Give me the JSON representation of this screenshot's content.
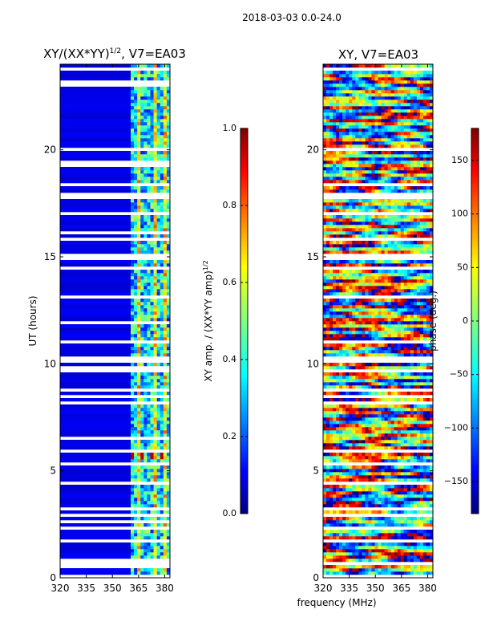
{
  "suptitle": "2018-03-03 0.0-24.0",
  "chart_data": [
    {
      "type": "heatmap",
      "title": "XY/(XX*YY)^1/2, V7=EA03",
      "title_text": "XY/(XX*YY)",
      "title_sup": "1/2",
      "title_rest": ", V7=EA03",
      "xlabel": "",
      "ylabel": "UT (hours)",
      "xlim": [
        320,
        383
      ],
      "ylim": [
        0,
        24
      ],
      "xticks": [
        "320",
        "335",
        "350",
        "365",
        "380"
      ],
      "xtick_values": [
        320,
        335,
        350,
        365,
        380
      ],
      "yticks": [
        "0",
        "5",
        "10",
        "15",
        "20"
      ],
      "ytick_values": [
        0,
        5,
        10,
        15,
        20
      ],
      "colorbar": {
        "label": "XY amp. / (XX*YY amp)^1/2",
        "label_text": "XY amp. / (XX*YY amp)",
        "label_sup": "1/2",
        "range": [
          0,
          1
        ],
        "ticks": [
          "0.0",
          "0.2",
          "0.4",
          "0.6",
          "0.8",
          "1.0"
        ],
        "tick_values": [
          0,
          0.2,
          0.4,
          0.6,
          0.8,
          1.0
        ]
      }
    },
    {
      "type": "heatmap",
      "title": "XY, V7=EA03",
      "xlabel": "frequency (MHz)",
      "ylabel": "",
      "xlim": [
        320,
        383
      ],
      "ylim": [
        0,
        24
      ],
      "xticks": [
        "320",
        "335",
        "350",
        "365",
        "380"
      ],
      "xtick_values": [
        320,
        335,
        350,
        365,
        380
      ],
      "yticks": [
        "0",
        "5",
        "10",
        "15",
        "20"
      ],
      "ytick_values": [
        0,
        5,
        10,
        15,
        20
      ],
      "colorbar": {
        "label": "phase (deg.)",
        "range": [
          -180,
          180
        ],
        "ticks": [
          "−150",
          "−100",
          "−50",
          "0",
          "50",
          "100",
          "150"
        ],
        "tick_values": [
          -150,
          -100,
          -50,
          0,
          50,
          100,
          150
        ]
      }
    }
  ],
  "colors": {
    "jet_low": "#00007f",
    "jet_mid": "#7fff7f",
    "jet_high": "#7f0000",
    "gap": "#ffffff"
  }
}
